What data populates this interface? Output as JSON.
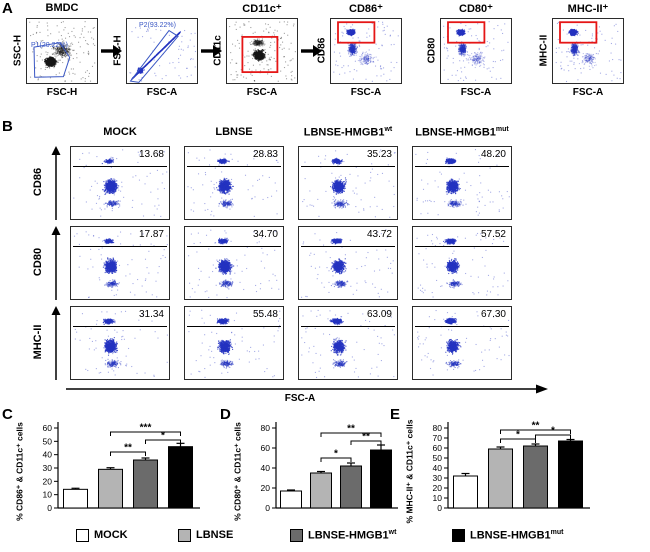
{
  "colors": {
    "blue_dot": "#2433c0",
    "black_dot": "#161616",
    "red_gate": "#e51616",
    "blue_gate": "#3a57c4",
    "axis": "#000000",
    "bar_fills": [
      "#ffffff",
      "#b4b4b4",
      "#6b6b6b",
      "#000000"
    ]
  },
  "panelA": {
    "label": "A",
    "plots": [
      {
        "title": "BMDC",
        "ylabel": "SSC-H",
        "xlabel": "FSC-H",
        "gate_label": "P1(20.22%)",
        "cloud": "black-broad"
      },
      {
        "title": "",
        "ylabel": "FSC-H",
        "xlabel": "FSC-A",
        "gate_label": "P2(93.22%)",
        "cloud": "blue-diagonal"
      },
      {
        "title": "CD11c⁺",
        "ylabel": "CD11c",
        "xlabel": "FSC-A",
        "gate_label": "",
        "cloud": "black-center"
      },
      {
        "title": "CD86⁺",
        "ylabel": "CD86",
        "xlabel": "FSC-A",
        "gate_label": "",
        "cloud": "blue-top"
      },
      {
        "title": "CD80⁺",
        "ylabel": "CD80",
        "xlabel": "FSC-A",
        "gate_label": "",
        "cloud": "blue-top"
      },
      {
        "title": "MHC-II⁺",
        "ylabel": "MHC-II",
        "xlabel": "FSC-A",
        "gate_label": "",
        "cloud": "blue-top"
      }
    ]
  },
  "panelB": {
    "label": "B",
    "columns": [
      {
        "base": "MOCK",
        "sup": ""
      },
      {
        "base": "LBNSE",
        "sup": ""
      },
      {
        "base": "LBNSE-HMGB1",
        "sup": "wt"
      },
      {
        "base": "LBNSE-HMGB1",
        "sup": "mut"
      }
    ],
    "rows": [
      "CD86",
      "CD80",
      "MHC-II"
    ],
    "xlabel": "FSC-A",
    "percentages": [
      [
        "13.68",
        "28.83",
        "35.23",
        "48.20"
      ],
      [
        "17.87",
        "34.70",
        "43.72",
        "57.52"
      ],
      [
        "31.34",
        "55.48",
        "63.09",
        "67.30"
      ]
    ]
  },
  "chart_data": [
    {
      "type": "bar",
      "panel_label": "C",
      "ylabel": "% CD86⁺ & CD11c⁺ cells",
      "categories": [
        "MOCK",
        "LBNSE",
        "LBNSE-HMGB1wt",
        "LBNSE-HMGB1mut"
      ],
      "values": [
        14,
        29,
        36,
        46
      ],
      "errors": [
        0.8,
        1.2,
        1.5,
        2.5
      ],
      "ylim": [
        0,
        60
      ],
      "yticks": [
        0,
        10,
        20,
        30,
        40,
        50,
        60
      ],
      "legend_position": "bottom",
      "grid": false,
      "significance": [
        {
          "from": 1,
          "to": 2,
          "label": "**",
          "y": 42
        },
        {
          "from": 2,
          "to": 3,
          "label": "*",
          "y": 51
        },
        {
          "from": 1,
          "to": 3,
          "label": "***",
          "y": 57
        }
      ]
    },
    {
      "type": "bar",
      "panel_label": "D",
      "ylabel": "% CD80⁺ & CD11c⁺ cells",
      "categories": [
        "MOCK",
        "LBNSE",
        "LBNSE-HMGB1wt",
        "LBNSE-HMGB1mut"
      ],
      "values": [
        17,
        35,
        42,
        58
      ],
      "errors": [
        1,
        1.5,
        3,
        5
      ],
      "ylim": [
        0,
        80
      ],
      "yticks": [
        0,
        20,
        40,
        60,
        80
      ],
      "legend_position": "bottom",
      "grid": false,
      "significance": [
        {
          "from": 1,
          "to": 2,
          "label": "*",
          "y": 50
        },
        {
          "from": 2,
          "to": 3,
          "label": "**",
          "y": 67
        },
        {
          "from": 1,
          "to": 3,
          "label": "**",
          "y": 75
        }
      ]
    },
    {
      "type": "bar",
      "panel_label": "E",
      "ylabel": "% MHC-II⁺ & CD11c⁺ cells",
      "categories": [
        "MOCK",
        "LBNSE",
        "LBNSE-HMGB1wt",
        "LBNSE-HMGB1mut"
      ],
      "values": [
        32,
        59,
        62,
        67
      ],
      "errors": [
        2.5,
        2,
        2,
        1.5
      ],
      "ylim": [
        0,
        80
      ],
      "yticks": [
        0,
        10,
        20,
        30,
        40,
        50,
        60,
        70,
        80
      ],
      "legend_position": "bottom",
      "grid": false,
      "significance": [
        {
          "from": 1,
          "to": 2,
          "label": "*",
          "y": 69
        },
        {
          "from": 2,
          "to": 3,
          "label": "*",
          "y": 73
        },
        {
          "from": 1,
          "to": 3,
          "label": "**",
          "y": 78
        }
      ]
    }
  ],
  "legend": [
    {
      "base": "MOCK",
      "sup": ""
    },
    {
      "base": "LBNSE",
      "sup": ""
    },
    {
      "base": "LBNSE-HMGB1",
      "sup": "wt"
    },
    {
      "base": "LBNSE-HMGB1",
      "sup": "mut"
    }
  ]
}
